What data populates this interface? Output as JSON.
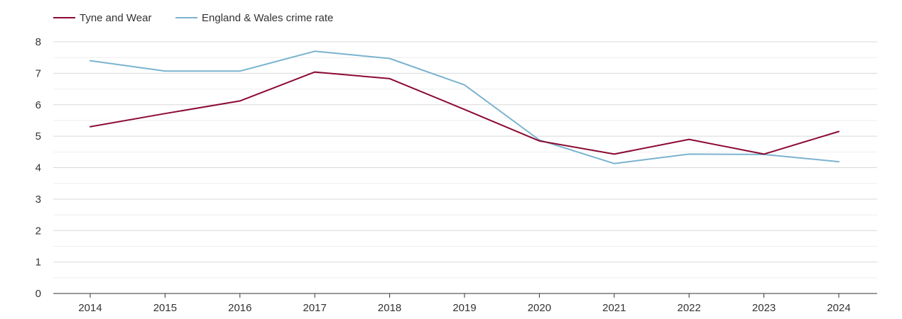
{
  "chart_data": {
    "type": "line",
    "x": [
      "2014",
      "2015",
      "2016",
      "2017",
      "2018",
      "2019",
      "2020",
      "2021",
      "2022",
      "2023",
      "2024"
    ],
    "series": [
      {
        "name": "Tyne and Wear",
        "color": "#8b0a32",
        "values": [
          5.3,
          5.72,
          6.12,
          7.04,
          6.83,
          5.85,
          4.85,
          4.43,
          4.9,
          4.43,
          5.15
        ]
      },
      {
        "name": "England & Wales crime rate",
        "color": "#7ab3cf",
        "values": [
          7.4,
          7.07,
          7.07,
          7.7,
          7.47,
          6.63,
          4.88,
          4.13,
          4.43,
          4.42,
          4.19
        ]
      }
    ],
    "yticks": [
      "0",
      "1",
      "2",
      "3",
      "4",
      "5",
      "6",
      "7",
      "8"
    ],
    "ylim": [
      0,
      8
    ],
    "grid": true,
    "legend": "top-left",
    "colors": {
      "grid": "#d9d9d9",
      "minor_grid": "#eeeeee",
      "axis": "#333333",
      "text": "#333333"
    }
  }
}
